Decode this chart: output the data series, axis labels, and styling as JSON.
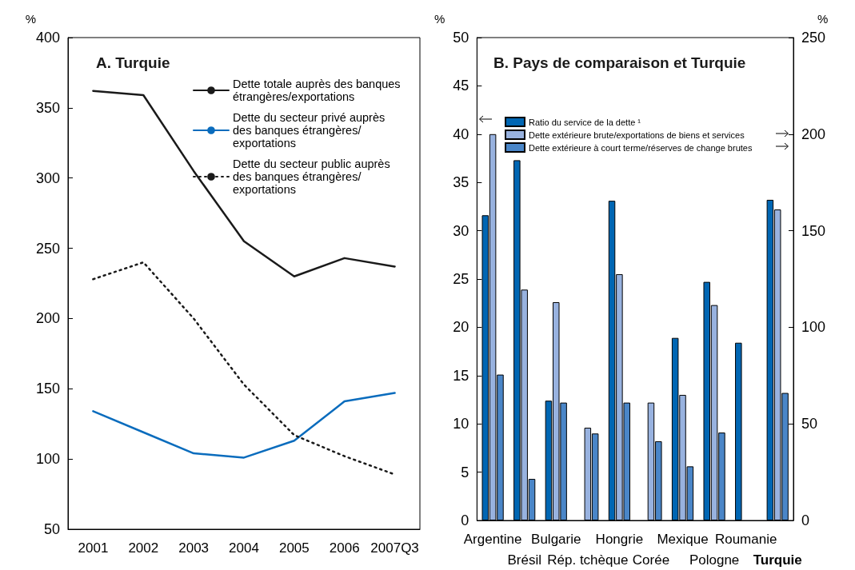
{
  "chart_data": [
    {
      "type": "line",
      "title": "A. Turquie",
      "ylabel": "%",
      "categories": [
        "2001",
        "2002",
        "2003",
        "2004",
        "2005",
        "2006",
        "2007Q3"
      ],
      "ylim": [
        50,
        400
      ],
      "yticks": [
        50,
        100,
        150,
        200,
        250,
        300,
        350,
        400
      ],
      "grid": false,
      "legend": "top right",
      "marker": "none",
      "series": [
        {
          "name": "Dette totale auprès des banques étrangères/exportations",
          "color": "#1a1a1a",
          "values": [
            362,
            359,
            305,
            255,
            230,
            243,
            237
          ]
        },
        {
          "name": "Dette du secteur privé auprès des banques étrangères/ exportations",
          "color": "#0a6cbd",
          "values": [
            134,
            119,
            104,
            101,
            113,
            141,
            147
          ]
        },
        {
          "name": "Dette du secteur public auprès des banques étrangères/ exportations",
          "color": "#1a1a1a",
          "line_style": "dotted",
          "values": [
            228,
            240,
            200,
            153,
            117,
            102,
            89
          ]
        }
      ]
    },
    {
      "type": "bar",
      "title": "B. Pays de comparaison et Turquie",
      "ylabel": "%",
      "y2label": "%",
      "categories": [
        "Argentine",
        "Brésil",
        "Bulgarie",
        "Rép. tchèque",
        "Hongrie",
        "Corée",
        "Mexique",
        "Pologne",
        "Roumanie",
        "Turquie"
      ],
      "ylim": [
        0,
        50
      ],
      "yticks": [
        0,
        5,
        10,
        15,
        20,
        25,
        30,
        35,
        40,
        45,
        50
      ],
      "y2lim": [
        0,
        250
      ],
      "y2ticks": [
        0,
        50,
        100,
        150,
        200,
        250
      ],
      "grid": false,
      "legend": "top left",
      "series": [
        {
          "name": "Ratio du service de la dette ¹",
          "color": "#0066b3",
          "values": [
            31.6,
            37.3,
            12.4,
            null,
            33.1,
            null,
            18.9,
            24.7,
            18.4,
            33.2
          ]
        },
        {
          "name": "Dette extérieure brute/exportations de biens et services",
          "color": "#98b2df",
          "axis": "y2",
          "values": [
            200,
            119.5,
            113,
            48,
            127.5,
            61,
            65,
            111.5,
            null,
            161
          ]
        },
        {
          "name": "Dette extérieure à court terme/réserves de change brutes",
          "color": "#4a86c8",
          "axis": "y2",
          "values": [
            75.5,
            21.5,
            61,
            45,
            61,
            41,
            28,
            45.5,
            null,
            66
          ]
        }
      ]
    }
  ]
}
